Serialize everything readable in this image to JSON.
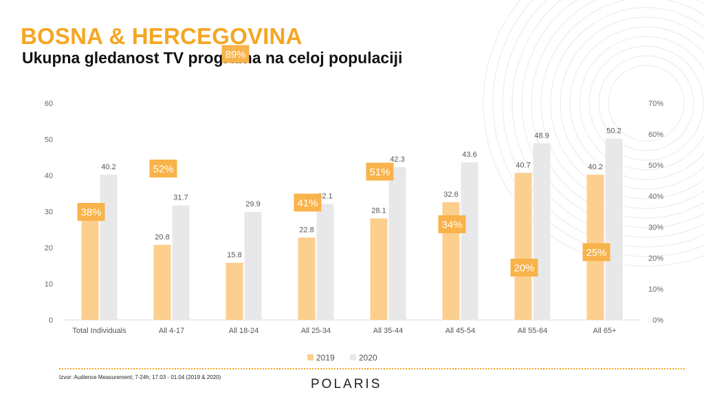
{
  "header": {
    "title": "BOSNA & HERCEGOVINA",
    "subtitle": "Ukupna gledanost TV programa na celoj populaciji"
  },
  "footer": {
    "source": "Izvor: Audience Measurement; 7-24h; 17.03 - 01.04 (2019 & 2020)",
    "logo": "POLARIS"
  },
  "colors": {
    "accent": "#f5a623",
    "series_2019": "#fdcf8e",
    "series_2020": "#e8e8ea",
    "badge": "#f8b34a"
  },
  "chart_data": {
    "type": "bar",
    "categories": [
      "Total Individuals",
      "All 4-17",
      "All 18-24",
      "All 25-34",
      "All 35-44",
      "All 45-54",
      "All 55-64",
      "All 65+"
    ],
    "series": [
      {
        "name": "2019",
        "values": [
          29.2,
          20.8,
          15.8,
          22.8,
          28.1,
          32.6,
          40.7,
          40.2
        ]
      },
      {
        "name": "2020",
        "values": [
          40.2,
          31.7,
          29.9,
          32.1,
          42.3,
          43.6,
          48.9,
          50.2
        ]
      }
    ],
    "change_labels": [
      "38%",
      "52%",
      "89%",
      "41%",
      "51%",
      "34%",
      "20%",
      "25%"
    ],
    "change_values": [
      38,
      52,
      89,
      41,
      51,
      34,
      20,
      25
    ],
    "ylim": [
      0,
      60
    ],
    "yticks": [
      "0",
      "10",
      "20",
      "30",
      "40",
      "50",
      "60"
    ],
    "y2lim": [
      0,
      70
    ],
    "y2ticks": [
      "0%",
      "10%",
      "20%",
      "30%",
      "40%",
      "50%",
      "60%",
      "70%"
    ],
    "legend_position": "bottom",
    "grid": false
  }
}
